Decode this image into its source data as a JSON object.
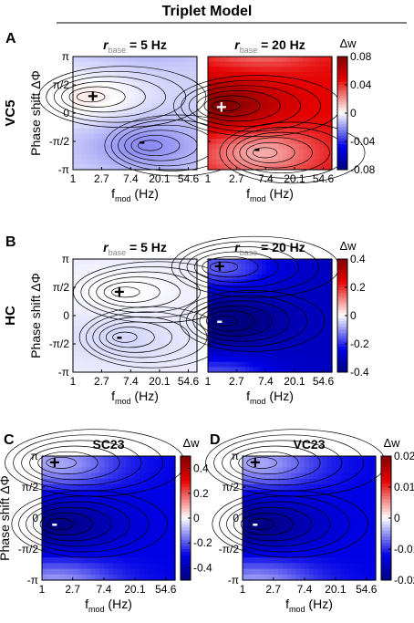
{
  "figure_title": "Triplet Model",
  "x_ticks": [
    "1",
    "2.7",
    "7.4",
    "20.1",
    "54.6"
  ],
  "y_ticks": [
    "π",
    "π/2",
    "0",
    "-π/2",
    "-π"
  ],
  "xlabel": {
    "base": "f",
    "sub": "mod",
    "tail": " (Hz)"
  },
  "ylabel": "Phase shift ΔΦ",
  "panel_title_base": {
    "base": "r",
    "sub": "base"
  },
  "colorbar_label": "Δw",
  "chart_data": [
    {
      "type": "heatmap",
      "panel": "A",
      "row_label": "VC5",
      "title": "= 5 Hz",
      "xlabel": "fmod (Hz)",
      "ylabel": "Phase shift ΔΦ",
      "x": [
        1,
        2.7,
        7.4,
        20.1,
        54.6
      ],
      "y": [
        "π",
        "π/2",
        "0",
        "-π/2",
        "-π"
      ],
      "colorbar": {
        "range": [
          -0.08,
          0.08
        ],
        "ticks": [
          "0.08",
          "0.04",
          "0",
          "-0.04",
          "-0.08"
        ]
      },
      "peak": {
        "value": 0.004,
        "fmod": 1.5,
        "phase": 0.9
      },
      "trough": {
        "value": -0.022,
        "fmod": 12,
        "phase": -1.8
      },
      "markers": [
        {
          "symbol": "+",
          "fmod": 2.0,
          "phase": 0.9
        },
        {
          "symbol": "-",
          "fmod": 11,
          "phase": -1.6
        }
      ]
    },
    {
      "type": "heatmap",
      "panel": "A",
      "row_label": "VC5",
      "title": "= 20 Hz",
      "xlabel": "fmod (Hz)",
      "ylabel": "Phase shift ΔΦ",
      "x": [
        1,
        2.7,
        7.4,
        20.1,
        54.6
      ],
      "y": [
        "π",
        "π/2",
        "0",
        "-π/2",
        "-π"
      ],
      "colorbar": {
        "range": [
          -0.08,
          0.08
        ],
        "ticks": [
          "0.08",
          "0.04",
          "0",
          "-0.04",
          "-0.08"
        ]
      },
      "peak": {
        "value": 0.08,
        "fmod": 1.5,
        "phase": 0.4
      },
      "trough": {
        "value": 0.015,
        "fmod": 6,
        "phase": -2.2
      },
      "markers": [
        {
          "symbol": "+",
          "fmod": 1.6,
          "phase": 0.3
        },
        {
          "symbol": "-",
          "fmod": 5.5,
          "phase": -2.0
        }
      ]
    },
    {
      "type": "heatmap",
      "panel": "B",
      "row_label": "HC",
      "title": "= 5 Hz",
      "xlabel": "fmod (Hz)",
      "ylabel": "Phase shift ΔΦ",
      "x": [
        1,
        2.7,
        7.4,
        20.1,
        54.6
      ],
      "y": [
        "π",
        "π/2",
        "0",
        "-π/2",
        "-π"
      ],
      "colorbar": {
        "range": [
          -0.4,
          0.4
        ],
        "ticks": [
          "0.4",
          "0.2",
          "0",
          "-0.2",
          "-0.4"
        ]
      },
      "peak": {
        "value": 0.003,
        "fmod": 5,
        "phase": 1.3
      },
      "trough": {
        "value": -0.04,
        "fmod": 5,
        "phase": -1.2
      },
      "markers": [
        {
          "symbol": "+",
          "fmod": 5,
          "phase": 1.3
        },
        {
          "symbol": "-",
          "fmod": 5,
          "phase": -1.2
        }
      ]
    },
    {
      "type": "heatmap",
      "panel": "B",
      "row_label": "HC",
      "title": "= 20 Hz",
      "xlabel": "fmod (Hz)",
      "ylabel": "Phase shift ΔΦ",
      "x": [
        1,
        2.7,
        7.4,
        20.1,
        54.6
      ],
      "y": [
        "π",
        "π/2",
        "0",
        "-π/2",
        "-π"
      ],
      "colorbar": {
        "range": [
          -0.4,
          0.4
        ],
        "ticks": [
          "0.4",
          "0.2",
          "0",
          "-0.2",
          "-0.4"
        ]
      },
      "peak": {
        "value": -0.15,
        "fmod": 1.4,
        "phase": 2.7
      },
      "trough": {
        "value": -0.45,
        "fmod": 1.5,
        "phase": -0.3
      },
      "markers": [
        {
          "symbol": "+",
          "fmod": 1.5,
          "phase": 2.7
        },
        {
          "symbol": "-",
          "fmod": 1.5,
          "phase": -0.3
        }
      ]
    },
    {
      "type": "heatmap",
      "panel": "C",
      "title": "SC23",
      "xlabel": "fmod (Hz)",
      "ylabel": "Phase shift ΔΦ",
      "x": [
        1,
        2.7,
        7.4,
        20.1,
        54.6
      ],
      "y": [
        "π",
        "π/2",
        "0",
        "-π/2",
        "-π"
      ],
      "colorbar": {
        "range": [
          -0.5,
          0.5
        ],
        "ticks": [
          "0.4",
          "0.2",
          "0",
          "-0.2",
          "-0.4"
        ]
      },
      "peak": {
        "value": -0.1,
        "fmod": 1.5,
        "phase": 2.8
      },
      "trough": {
        "value": -0.5,
        "fmod": 1.5,
        "phase": -0.3
      },
      "markers": [
        {
          "symbol": "+",
          "fmod": 1.5,
          "phase": 2.8
        },
        {
          "symbol": "-",
          "fmod": 1.5,
          "phase": -0.3
        }
      ]
    },
    {
      "type": "heatmap",
      "panel": "D",
      "title": "VC23",
      "xlabel": "fmod (Hz)",
      "ylabel": "Phase shift ΔΦ",
      "x": [
        1,
        2.7,
        7.4,
        20.1,
        54.6
      ],
      "y": [
        "π",
        "π/2",
        "0",
        "-π/2",
        "-π"
      ],
      "colorbar": {
        "range": [
          -0.02,
          0.02
        ],
        "ticks": [
          "0.02",
          "0.01",
          "0",
          "-0.01",
          "-0.02"
        ]
      },
      "peak": {
        "value": -0.004,
        "fmod": 1.5,
        "phase": 2.8
      },
      "trough": {
        "value": -0.02,
        "fmod": 1.5,
        "phase": -0.3
      },
      "markers": [
        {
          "symbol": "+",
          "fmod": 1.5,
          "phase": 2.8
        },
        {
          "symbol": "-",
          "fmod": 1.5,
          "phase": -0.3
        }
      ]
    }
  ]
}
